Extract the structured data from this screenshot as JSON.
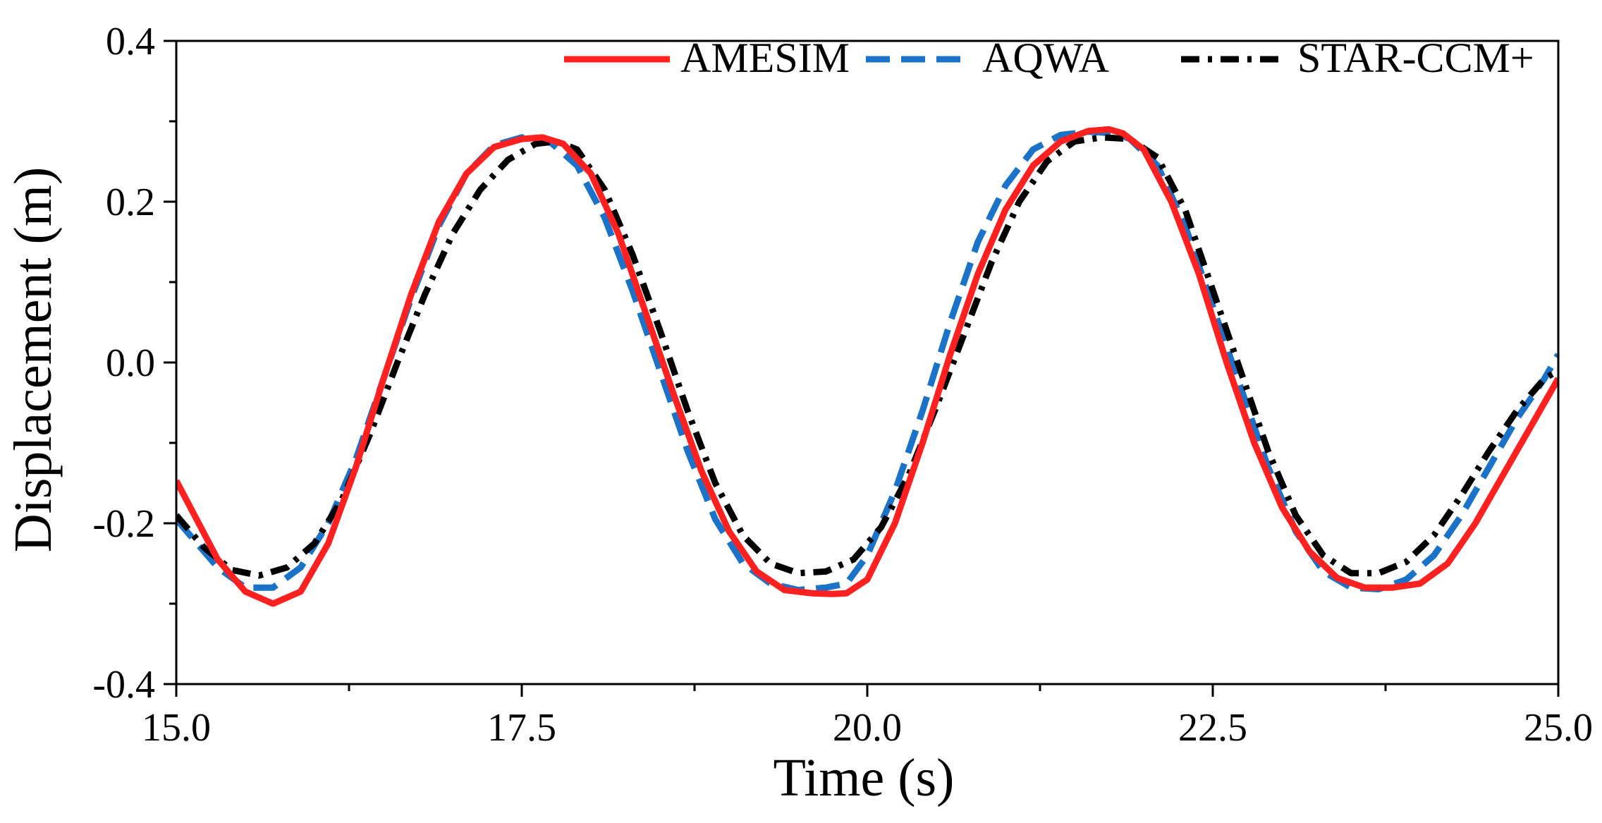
{
  "chart_data": {
    "type": "line",
    "title": "",
    "xlabel": "Time (s)",
    "ylabel": "Displacement (m)",
    "xlim": [
      15.0,
      25.0
    ],
    "ylim": [
      -0.4,
      0.4
    ],
    "xticks": [
      15.0,
      17.5,
      20.0,
      22.5,
      25.0
    ],
    "xtick_labels": [
      "15.0",
      "17.5",
      "20.0",
      "22.5",
      "25.0"
    ],
    "yticks": [
      -0.4,
      -0.2,
      0.0,
      0.2,
      0.4
    ],
    "ytick_labels": [
      "-0.4",
      "-0.2",
      "0.0",
      "0.2",
      "0.4"
    ],
    "x_minor_step": 1.25,
    "y_minor_step": 0.1,
    "grid": false,
    "legend_position": "top-right",
    "series": [
      {
        "name": "AMESIM",
        "color": "#ff2020",
        "style": "solid",
        "x": [
          15.0,
          15.3,
          15.5,
          15.7,
          15.9,
          16.1,
          16.3,
          16.5,
          16.7,
          16.9,
          17.1,
          17.3,
          17.5,
          17.65,
          17.8,
          18.0,
          18.2,
          18.4,
          18.6,
          18.8,
          19.0,
          19.2,
          19.4,
          19.6,
          19.75,
          19.85,
          20.0,
          20.2,
          20.4,
          20.6,
          20.8,
          21.0,
          21.2,
          21.4,
          21.6,
          21.75,
          21.85,
          22.0,
          22.2,
          22.4,
          22.6,
          22.8,
          23.0,
          23.2,
          23.4,
          23.6,
          23.8,
          24.0,
          24.2,
          24.4,
          24.6,
          24.8,
          25.0
        ],
        "values": [
          -0.147,
          -0.245,
          -0.285,
          -0.3,
          -0.285,
          -0.225,
          -0.13,
          -0.02,
          0.085,
          0.175,
          0.235,
          0.268,
          0.278,
          0.28,
          0.272,
          0.235,
          0.16,
          0.06,
          -0.04,
          -0.135,
          -0.21,
          -0.26,
          -0.283,
          -0.287,
          -0.288,
          -0.287,
          -0.27,
          -0.2,
          -0.1,
          0.01,
          0.11,
          0.19,
          0.245,
          0.275,
          0.288,
          0.29,
          0.285,
          0.265,
          0.2,
          0.11,
          0.0,
          -0.1,
          -0.18,
          -0.235,
          -0.268,
          -0.28,
          -0.28,
          -0.275,
          -0.25,
          -0.2,
          -0.14,
          -0.08,
          -0.02
        ]
      },
      {
        "name": "AQWA",
        "color": "#1a73c8",
        "style": "dashed",
        "x": [
          15.0,
          15.3,
          15.5,
          15.7,
          15.9,
          16.1,
          16.3,
          16.5,
          16.7,
          16.9,
          17.1,
          17.3,
          17.5,
          17.7,
          17.9,
          18.1,
          18.3,
          18.5,
          18.7,
          18.9,
          19.1,
          19.3,
          19.5,
          19.7,
          19.85,
          20.0,
          20.2,
          20.4,
          20.6,
          20.8,
          21.0,
          21.2,
          21.4,
          21.6,
          21.8,
          21.9,
          22.1,
          22.3,
          22.5,
          22.7,
          22.9,
          23.1,
          23.3,
          23.5,
          23.7,
          23.9,
          24.1,
          24.3,
          24.5,
          24.7,
          24.9,
          25.0
        ],
        "values": [
          -0.195,
          -0.255,
          -0.28,
          -0.28,
          -0.255,
          -0.2,
          -0.12,
          -0.02,
          0.08,
          0.17,
          0.235,
          0.27,
          0.28,
          0.275,
          0.245,
          0.18,
          0.09,
          -0.01,
          -0.11,
          -0.195,
          -0.25,
          -0.275,
          -0.283,
          -0.28,
          -0.275,
          -0.24,
          -0.16,
          -0.06,
          0.05,
          0.15,
          0.22,
          0.265,
          0.283,
          0.287,
          0.285,
          0.278,
          0.245,
          0.17,
          0.07,
          -0.03,
          -0.13,
          -0.21,
          -0.26,
          -0.28,
          -0.282,
          -0.27,
          -0.24,
          -0.19,
          -0.13,
          -0.07,
          -0.02,
          0.01
        ]
      },
      {
        "name": "STAR-CCM+",
        "color": "#000000",
        "style": "dashdot",
        "x": [
          15.0,
          15.2,
          15.4,
          15.6,
          15.8,
          16.0,
          16.2,
          16.4,
          16.6,
          16.8,
          17.0,
          17.2,
          17.4,
          17.6,
          17.75,
          17.9,
          18.1,
          18.3,
          18.5,
          18.7,
          18.9,
          19.1,
          19.3,
          19.5,
          19.7,
          19.9,
          20.1,
          20.3,
          20.5,
          20.7,
          20.9,
          21.1,
          21.3,
          21.5,
          21.7,
          21.9,
          22.1,
          22.3,
          22.5,
          22.7,
          22.9,
          23.1,
          23.3,
          23.5,
          23.7,
          23.9,
          24.1,
          24.3,
          24.5,
          24.7,
          24.9,
          25.0
        ],
        "values": [
          -0.19,
          -0.23,
          -0.258,
          -0.265,
          -0.255,
          -0.225,
          -0.17,
          -0.09,
          0.0,
          0.085,
          0.16,
          0.215,
          0.252,
          0.272,
          0.275,
          0.265,
          0.215,
          0.135,
          0.04,
          -0.06,
          -0.15,
          -0.215,
          -0.25,
          -0.262,
          -0.26,
          -0.245,
          -0.205,
          -0.14,
          -0.055,
          0.035,
          0.125,
          0.2,
          0.25,
          0.275,
          0.28,
          0.278,
          0.255,
          0.19,
          0.09,
          -0.01,
          -0.11,
          -0.19,
          -0.24,
          -0.262,
          -0.262,
          -0.248,
          -0.215,
          -0.165,
          -0.11,
          -0.06,
          -0.02,
          -0.01
        ]
      }
    ]
  }
}
